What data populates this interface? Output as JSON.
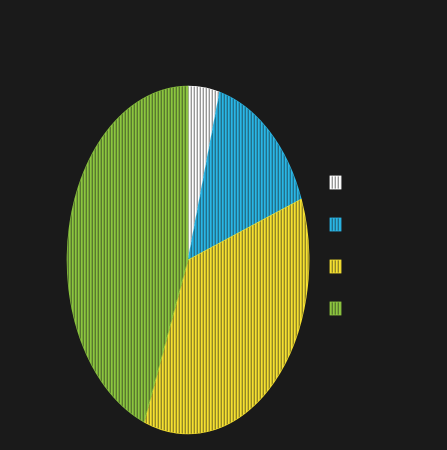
{
  "chart_data": {
    "type": "pie",
    "title": "",
    "labels": [
      "",
      "",
      "",
      ""
    ],
    "values": [
      4.2,
      15.1,
      36.6,
      44.1
    ],
    "colors": [
      "#ffffff",
      "#29b6e6",
      "#f5e030",
      "#8cc63f"
    ],
    "legend": "right",
    "pattern": "hatched",
    "start_angle_deg": 0,
    "direction": "clockwise"
  }
}
